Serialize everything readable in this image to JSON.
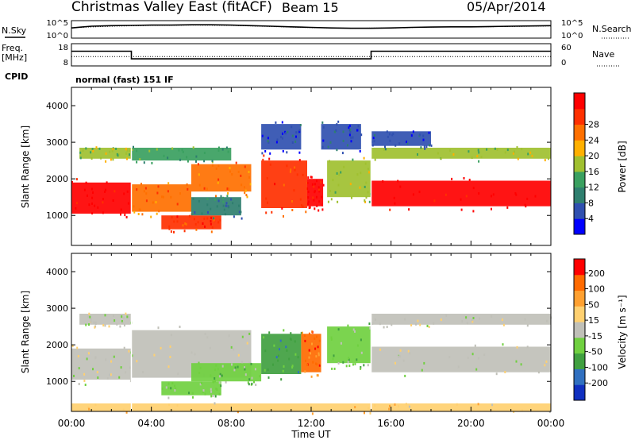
{
  "header": {
    "title": "Christmas Valley East (fitACF)",
    "beam": "Beam 15",
    "date": "05/Apr/2014"
  },
  "colors": {
    "power_scale": [
      "#0000ff",
      "#3050b0",
      "#2f7f6f",
      "#3aa060",
      "#a0c030",
      "#ffb000",
      "#ff7000",
      "#ff3000",
      "#ff0000"
    ],
    "velocity_scale": [
      "#1030c0",
      "#3070c0",
      "#40a040",
      "#70d040",
      "#c0c0b8",
      "#ffd070",
      "#ffa030",
      "#ff6a00",
      "#ff0000"
    ],
    "ground_scatter": "#c0c0b8"
  },
  "chart_data": [
    {
      "type": "line",
      "panel": "noise",
      "left_label": "N.Sky",
      "right_label": "N.Search",
      "left_ticks": [
        "10^5",
        "10^0"
      ],
      "right_ticks": [
        "10^5",
        "10^0"
      ],
      "series": [
        {
          "key": "sky",
          "style": "solid",
          "x": [
            0,
            0.5,
            1,
            2,
            3,
            4,
            5,
            6,
            7,
            8,
            9,
            10,
            11,
            12,
            13,
            14,
            15,
            16,
            17,
            18,
            19,
            20,
            21,
            22,
            23,
            24
          ],
          "y": [
            3.0,
            3.3,
            3.6,
            3.8,
            3.9,
            4.0,
            4.0,
            4.1,
            4.1,
            4.0,
            3.8,
            3.6,
            3.4,
            3.2,
            3.0,
            2.9,
            2.9,
            3.0,
            3.2,
            3.3,
            3.4,
            3.4,
            3.5,
            3.6,
            3.7,
            3.8
          ]
        },
        {
          "key": "search",
          "style": "dotted",
          "x": [
            0,
            2,
            4,
            6,
            8,
            10,
            12,
            14,
            16,
            18,
            20,
            22,
            24
          ],
          "y": [
            3.1,
            3.6,
            3.9,
            4.0,
            3.9,
            3.5,
            3.1,
            2.9,
            3.0,
            3.3,
            3.4,
            3.5,
            3.7
          ]
        }
      ]
    },
    {
      "type": "line",
      "panel": "frequency",
      "left_label": "Freq.",
      "left_unit": "[MHz]",
      "right_label": "Nave",
      "left_ticks": [
        "18",
        "8"
      ],
      "right_ticks": [
        "60",
        "0"
      ],
      "series": [
        {
          "key": "freq",
          "style": "solid",
          "x": [
            0,
            3,
            3,
            15,
            15,
            24
          ],
          "y": [
            15.3,
            15.3,
            11.3,
            11.3,
            15.3,
            15.3
          ]
        },
        {
          "key": "nave",
          "style": "dotted",
          "x": [
            0,
            24
          ],
          "y": [
            27,
            27
          ]
        }
      ]
    },
    {
      "type": "heatmap",
      "panel": "power",
      "cpid_label": "CPID",
      "cpid_text": "normal (fast) 151 IF",
      "ylabel": "Slant Range [km]",
      "xlim": [
        0,
        24
      ],
      "ylim": [
        180,
        4500
      ],
      "yticks": [
        1000,
        2000,
        3000,
        4000
      ],
      "colorbar_label": "Power [dB]",
      "colorbar_ticks": [
        "4",
        "8",
        "12",
        "16",
        "20",
        "24",
        "28"
      ],
      "bands": [
        {
          "t0": 0,
          "t1": 3,
          "r0": 1050,
          "r1": 1900,
          "level": 8
        },
        {
          "t0": 0.4,
          "t1": 3,
          "r0": 2550,
          "r1": 2850,
          "level": 4
        },
        {
          "t0": 3,
          "t1": 6,
          "r0": 1100,
          "r1": 1850,
          "level": 6
        },
        {
          "t0": 6,
          "t1": 9,
          "r0": 1650,
          "r1": 2400,
          "level": 6
        },
        {
          "t0": 3,
          "t1": 8,
          "r0": 2500,
          "r1": 2850,
          "level": 3
        },
        {
          "t0": 4.5,
          "t1": 7.5,
          "r0": 620,
          "r1": 1000,
          "level": 7
        },
        {
          "t0": 6,
          "t1": 8.5,
          "r0": 1000,
          "r1": 1500,
          "level": 2
        },
        {
          "t0": 9.5,
          "t1": 11.8,
          "r0": 1200,
          "r1": 2500,
          "level": 7
        },
        {
          "t0": 11.8,
          "t1": 12.6,
          "r0": 1250,
          "r1": 2000,
          "level": 8
        },
        {
          "t0": 9.5,
          "t1": 11.5,
          "r0": 2800,
          "r1": 3500,
          "level": 1
        },
        {
          "t0": 12.8,
          "t1": 15,
          "r0": 1500,
          "r1": 2500,
          "level": 4
        },
        {
          "t0": 12.5,
          "t1": 14.5,
          "r0": 2800,
          "r1": 3500,
          "level": 1
        },
        {
          "t0": 15,
          "t1": 24,
          "r0": 1250,
          "r1": 1950,
          "level": 8
        },
        {
          "t0": 15,
          "t1": 24,
          "r0": 2550,
          "r1": 2850,
          "level": 4
        },
        {
          "t0": 15,
          "t1": 18,
          "r0": 2900,
          "r1": 3300,
          "level": 1
        }
      ]
    },
    {
      "type": "heatmap",
      "panel": "velocity",
      "ylabel": "Slant Range [km]",
      "xlabel": "Time UT",
      "xlim": [
        0,
        24
      ],
      "ylim": [
        180,
        4500
      ],
      "yticks": [
        1000,
        2000,
        3000,
        4000
      ],
      "xticks": [
        "00:00",
        "04:00",
        "08:00",
        "12:00",
        "16:00",
        "20:00",
        "00:00"
      ],
      "colorbar_label": "Velocity [m s⁻¹]",
      "colorbar_ticks": [
        "200",
        "100",
        "50",
        "15",
        "-15",
        "-50",
        "-100",
        "-200"
      ],
      "bands": [
        {
          "t0": 0,
          "t1": 3,
          "r0": 1050,
          "r1": 1900,
          "level": 4
        },
        {
          "t0": 0.4,
          "t1": 3,
          "r0": 2550,
          "r1": 2850,
          "level": 4
        },
        {
          "t0": 3,
          "t1": 9,
          "r0": 1100,
          "r1": 2400,
          "level": 4
        },
        {
          "t0": 4.5,
          "t1": 7.5,
          "r0": 620,
          "r1": 1000,
          "level": 3
        },
        {
          "t0": 6,
          "t1": 9.5,
          "r0": 1000,
          "r1": 1500,
          "level": 3
        },
        {
          "t0": 9.5,
          "t1": 11.5,
          "r0": 1200,
          "r1": 2300,
          "level": 2
        },
        {
          "t0": 11.5,
          "t1": 12.5,
          "r0": 1250,
          "r1": 2300,
          "level": 7
        },
        {
          "t0": 12.8,
          "t1": 15,
          "r0": 1500,
          "r1": 2500,
          "level": 3
        },
        {
          "t0": 15,
          "t1": 24,
          "r0": 1250,
          "r1": 1950,
          "level": 4
        },
        {
          "t0": 15,
          "t1": 24,
          "r0": 2550,
          "r1": 2850,
          "level": 4
        },
        {
          "t0": 0,
          "t1": 24,
          "r0": 180,
          "r1": 400,
          "level": 5
        }
      ]
    }
  ]
}
